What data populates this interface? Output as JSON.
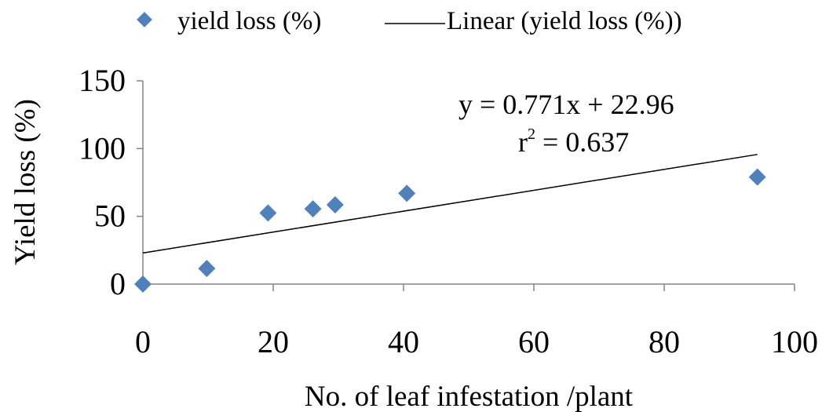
{
  "chart_data": {
    "type": "scatter",
    "xlabel": "No. of leaf infestation /plant",
    "ylabel": "Yield loss (%)",
    "xlim": [
      0,
      100
    ],
    "ylim": [
      0,
      150
    ],
    "x_ticks": [
      "0",
      "20",
      "40",
      "60",
      "80",
      "100"
    ],
    "y_ticks": [
      "0",
      "50",
      "100",
      "150"
    ],
    "grid": false,
    "legend_position": "top",
    "series": [
      {
        "name": "yield loss (%)",
        "marker": "diamond",
        "color": "#4F81BD",
        "points": [
          {
            "x": 0,
            "y": 0
          },
          {
            "x": 9.8,
            "y": 11.5
          },
          {
            "x": 19.2,
            "y": 52.5
          },
          {
            "x": 26.1,
            "y": 55.5
          },
          {
            "x": 29.5,
            "y": 58.5
          },
          {
            "x": 40.5,
            "y": 67
          },
          {
            "x": 94.3,
            "y": 79
          }
        ]
      }
    ],
    "trendline": {
      "name": "Linear (yield loss (%))",
      "slope": 0.771,
      "intercept": 22.96,
      "x_range": [
        0,
        94.3
      ],
      "color": "#000000"
    },
    "annotations": {
      "equation": "y = 0.771x + 22.96",
      "r2_base": "r",
      "r2_exp": "2",
      "r2_rest": " = 0.637"
    }
  }
}
